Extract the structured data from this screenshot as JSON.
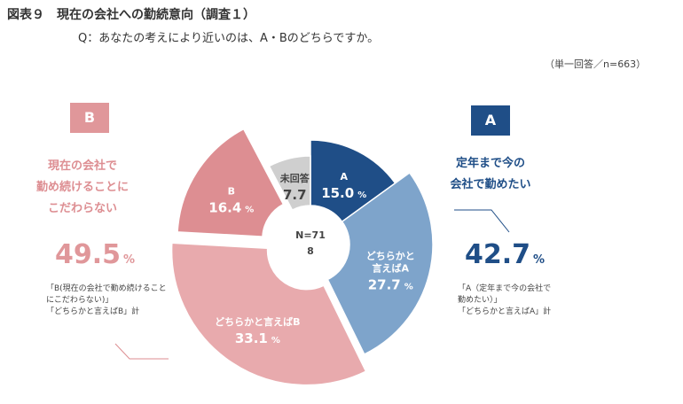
{
  "title": "図表９　現在の会社への勤続意向（調査１）",
  "question": "Q：あなたの考えにより近いのは、A・Bのどちらですか。",
  "note": "（単一回答／n=663）",
  "center": {
    "line1": "N=71",
    "line2": "8"
  },
  "group_b": {
    "badge": "B",
    "desc_lines": [
      "現在の会社で",
      "勤め続けることに",
      "こだわらない"
    ],
    "total": "49.5",
    "unit": "%",
    "note_lines": [
      "「B(現在の会社で勤め続けること",
      "にこだわらない)」",
      "「どちらかと言えばB」計"
    ]
  },
  "group_a": {
    "badge": "A",
    "desc_lines": [
      "定年まで今の",
      "会社で勤めたい"
    ],
    "total": "42.7",
    "unit": "%",
    "note_lines": [
      "「A（定年まで今の会社で",
      "勤めたい）」",
      "「どちらかと言えばA」計"
    ]
  },
  "colors": {
    "A": "#1f4e87",
    "leanA": "#7ea4cb",
    "leanB": "#e8aaad",
    "B": "#dd8e92",
    "none": "#cfcfcf",
    "pink_text": "#e0979a",
    "navy_text": "#1f4e87"
  },
  "chart_data": {
    "type": "pie",
    "unit": "%",
    "slices": [
      {
        "key": "A",
        "label": "A",
        "value": 15.0,
        "display": "15.0"
      },
      {
        "key": "leanA",
        "label": "どちらかと言えばA",
        "label_lines": [
          "どちらかと",
          "言えばA"
        ],
        "value": 27.7,
        "display": "27.7"
      },
      {
        "key": "leanB",
        "label": "どちらかと言えばB",
        "value": 33.1,
        "display": "33.1"
      },
      {
        "key": "B",
        "label": "B",
        "value": 16.4,
        "display": "16.4"
      },
      {
        "key": "none",
        "label": "未回答",
        "value": 7.7,
        "display": "7.7"
      }
    ]
  }
}
